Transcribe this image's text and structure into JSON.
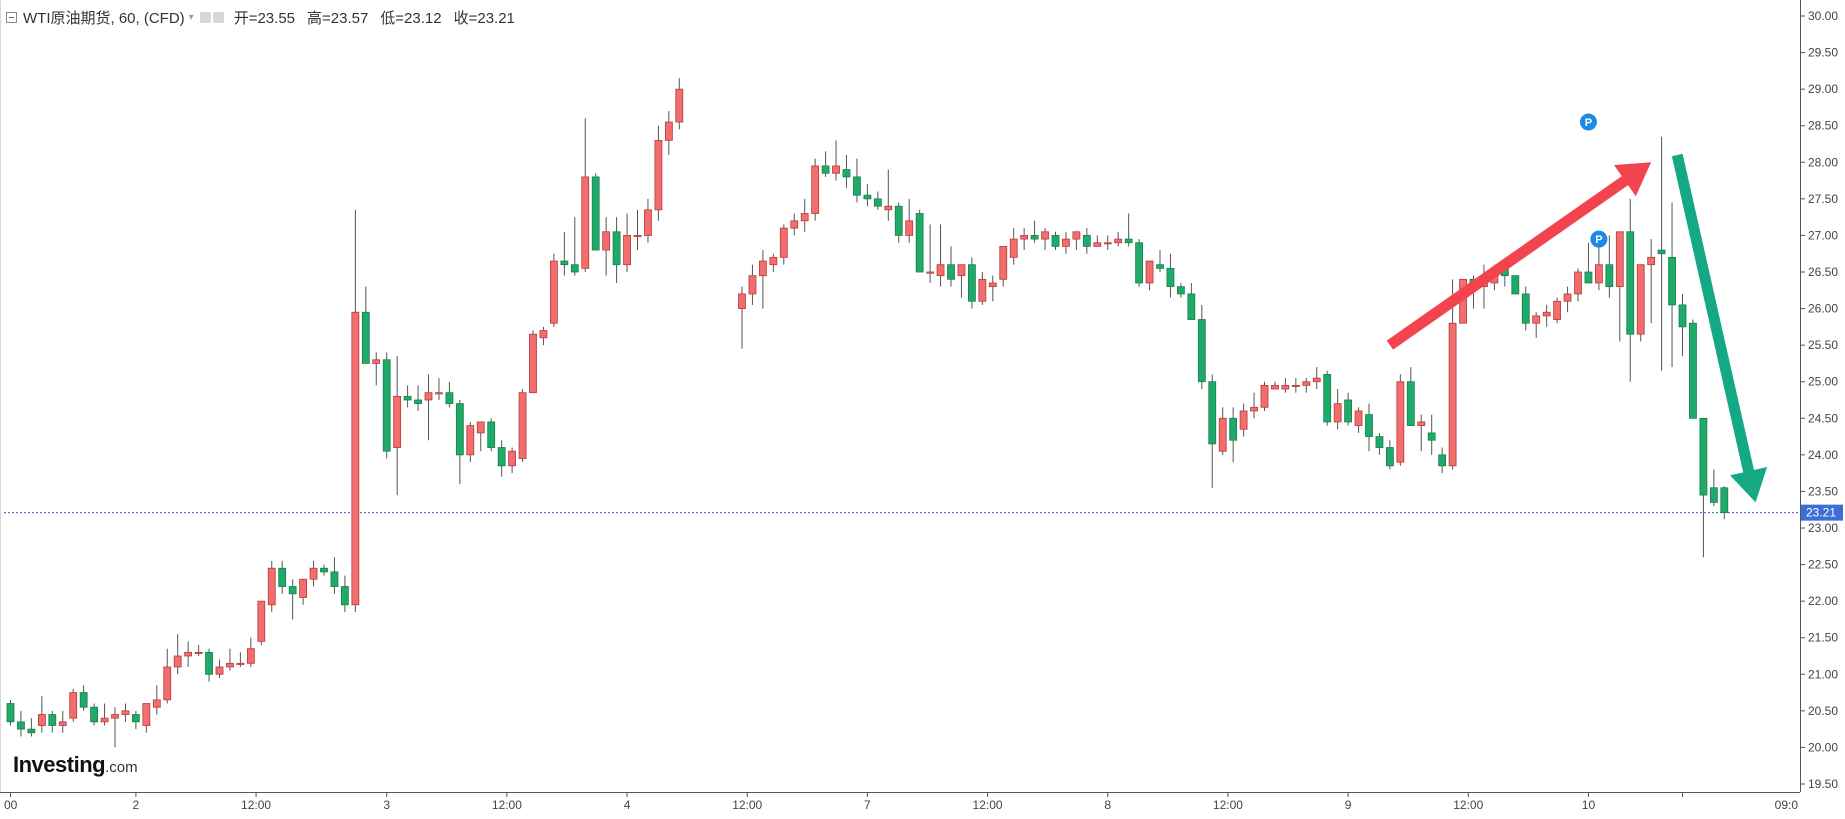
{
  "legend": {
    "symbol": "WTI原油期货, 60, (CFD)",
    "open_label": "开=23.55",
    "high_label": "高=23.57",
    "low_label": "低=23.12",
    "close_label": "收=23.21"
  },
  "brand": {
    "name": "Investing",
    "suffix": ".com"
  },
  "colors": {
    "up": "#ef5350",
    "down": "#26a69a",
    "up_fill": "#f26d6d",
    "down_fill": "#1faa6a",
    "wick": "#555555",
    "last_price_line": "#3a5fb8",
    "last_price_tag": "#3a6fd8",
    "arrow_up": "#f2444f",
    "arrow_down": "#14a884",
    "marker": "#1e88e5"
  },
  "chart_data": {
    "type": "candlestick",
    "title": "WTI原油期货, 60, (CFD)",
    "interval": "60",
    "ylim": [
      19.45,
      30.1
    ],
    "y_ticks": [
      "30.00",
      "29.50",
      "29.00",
      "28.50",
      "28.00",
      "27.50",
      "27.00",
      "26.50",
      "26.00",
      "25.50",
      "25.00",
      "24.50",
      "24.00",
      "23.50",
      "23.00",
      "22.50",
      "22.00",
      "21.50",
      "21.00",
      "20.50",
      "20.00",
      "19.50"
    ],
    "x_ticks": [
      "00",
      "2",
      "12:00",
      "3",
      "12:00",
      "4",
      "12:00",
      "7",
      "12:00",
      "8",
      "12:00",
      "9",
      "12:00",
      "10",
      "09:0"
    ],
    "last_price": "23.21",
    "x_tick_index": [
      0,
      12,
      23.5,
      36,
      47.5,
      59,
      70.5,
      82,
      93.5,
      105,
      116.5,
      128,
      139.5,
      151,
      160
    ],
    "candles": [
      [
        20.6,
        20.65,
        20.3,
        20.35
      ],
      [
        20.35,
        20.5,
        20.15,
        20.25
      ],
      [
        20.25,
        20.4,
        20.15,
        20.2
      ],
      [
        20.3,
        20.7,
        20.2,
        20.45
      ],
      [
        20.45,
        20.5,
        20.2,
        20.3
      ],
      [
        20.3,
        20.5,
        20.2,
        20.35
      ],
      [
        20.4,
        20.8,
        20.35,
        20.75
      ],
      [
        20.75,
        20.85,
        20.5,
        20.55
      ],
      [
        20.55,
        20.6,
        20.3,
        20.35
      ],
      [
        20.35,
        20.6,
        20.3,
        20.4
      ],
      [
        20.4,
        20.55,
        20.0,
        20.45
      ],
      [
        20.45,
        20.6,
        20.35,
        20.5
      ],
      [
        20.45,
        20.5,
        20.25,
        20.35
      ],
      [
        20.3,
        20.6,
        20.2,
        20.6
      ],
      [
        20.55,
        20.85,
        20.45,
        20.65
      ],
      [
        20.65,
        21.35,
        20.6,
        21.1
      ],
      [
        21.1,
        21.55,
        21.0,
        21.25
      ],
      [
        21.25,
        21.45,
        21.1,
        21.3
      ],
      [
        21.3,
        21.4,
        21.25,
        21.3
      ],
      [
        21.3,
        21.35,
        20.9,
        21.0
      ],
      [
        21.0,
        21.2,
        20.95,
        21.1
      ],
      [
        21.1,
        21.35,
        21.05,
        21.15
      ],
      [
        21.15,
        21.3,
        21.1,
        21.15
      ],
      [
        21.15,
        21.5,
        21.1,
        21.35
      ],
      [
        21.45,
        22.0,
        21.4,
        22.0
      ],
      [
        21.95,
        22.55,
        21.85,
        22.45
      ],
      [
        22.45,
        22.55,
        22.1,
        22.2
      ],
      [
        22.2,
        22.3,
        21.75,
        22.1
      ],
      [
        22.05,
        22.25,
        21.95,
        22.3
      ],
      [
        22.3,
        22.55,
        22.2,
        22.45
      ],
      [
        22.45,
        22.5,
        22.35,
        22.4
      ],
      [
        22.4,
        22.6,
        22.1,
        22.2
      ],
      [
        22.2,
        22.35,
        21.85,
        21.95
      ],
      [
        21.95,
        27.35,
        21.85,
        25.95
      ],
      [
        25.95,
        26.3,
        25.6,
        25.25
      ],
      [
        25.25,
        25.4,
        24.95,
        25.3
      ],
      [
        25.3,
        25.4,
        23.95,
        24.05
      ],
      [
        24.1,
        25.35,
        23.45,
        24.8
      ],
      [
        24.8,
        24.95,
        24.65,
        24.75
      ],
      [
        24.75,
        24.95,
        24.6,
        24.7
      ],
      [
        24.75,
        25.1,
        24.2,
        24.85
      ],
      [
        24.85,
        25.05,
        24.75,
        24.85
      ],
      [
        24.85,
        25.0,
        24.65,
        24.7
      ],
      [
        24.7,
        24.75,
        23.6,
        24.0
      ],
      [
        24.0,
        24.45,
        23.9,
        24.4
      ],
      [
        24.3,
        24.4,
        24.05,
        24.45
      ],
      [
        24.45,
        24.5,
        24.05,
        24.1
      ],
      [
        24.1,
        24.2,
        23.7,
        23.85
      ],
      [
        23.85,
        24.1,
        23.75,
        24.05
      ],
      [
        23.95,
        24.9,
        23.9,
        24.85
      ],
      [
        24.85,
        25.7,
        24.85,
        25.65
      ],
      [
        25.6,
        25.75,
        25.5,
        25.7
      ],
      [
        25.8,
        26.75,
        25.75,
        26.65
      ],
      [
        26.65,
        27.05,
        26.45,
        26.6
      ],
      [
        26.6,
        27.25,
        26.45,
        26.5
      ],
      [
        26.55,
        28.6,
        26.5,
        27.8
      ],
      [
        27.8,
        27.85,
        26.9,
        26.8
      ],
      [
        26.8,
        27.25,
        26.45,
        27.05
      ],
      [
        27.05,
        27.25,
        26.35,
        26.6
      ],
      [
        26.6,
        27.3,
        26.5,
        27.0
      ],
      [
        27.0,
        27.35,
        26.8,
        27.0
      ],
      [
        27.0,
        27.5,
        26.9,
        27.35
      ],
      [
        27.35,
        28.5,
        27.2,
        28.3
      ],
      [
        28.3,
        28.7,
        28.1,
        28.55
      ],
      [
        28.55,
        29.15,
        28.45,
        29.0
      ],
      [
        null,
        null,
        null,
        null
      ],
      [
        null,
        null,
        null,
        null
      ],
      [
        null,
        null,
        null,
        null
      ],
      [
        null,
        null,
        null,
        null
      ],
      [
        null,
        null,
        null,
        null
      ],
      [
        26.0,
        26.3,
        25.45,
        26.2
      ],
      [
        26.2,
        26.6,
        26.05,
        26.45
      ],
      [
        26.45,
        26.8,
        26.0,
        26.65
      ],
      [
        26.6,
        26.75,
        26.5,
        26.7
      ],
      [
        26.7,
        27.15,
        26.6,
        27.1
      ],
      [
        27.1,
        27.3,
        27.0,
        27.2
      ],
      [
        27.2,
        27.5,
        27.05,
        27.3
      ],
      [
        27.3,
        28.05,
        27.2,
        27.95
      ],
      [
        27.95,
        28.15,
        27.8,
        27.85
      ],
      [
        27.85,
        28.3,
        27.75,
        27.95
      ],
      [
        27.9,
        28.1,
        27.65,
        27.8
      ],
      [
        27.8,
        28.05,
        27.45,
        27.55
      ],
      [
        27.55,
        27.7,
        27.4,
        27.5
      ],
      [
        27.5,
        27.6,
        27.35,
        27.4
      ],
      [
        27.35,
        27.9,
        27.2,
        27.4
      ],
      [
        27.4,
        27.45,
        26.9,
        27.0
      ],
      [
        27.0,
        27.5,
        26.9,
        27.2
      ],
      [
        27.3,
        27.35,
        26.5,
        26.5
      ],
      [
        26.5,
        27.15,
        26.35,
        26.5
      ],
      [
        26.45,
        27.15,
        26.3,
        26.6
      ],
      [
        26.6,
        26.85,
        26.3,
        26.4
      ],
      [
        26.45,
        26.55,
        26.15,
        26.6
      ],
      [
        26.6,
        26.7,
        26.0,
        26.1
      ],
      [
        26.1,
        26.5,
        26.05,
        26.4
      ],
      [
        26.3,
        26.45,
        26.1,
        26.35
      ],
      [
        26.4,
        26.8,
        26.3,
        26.85
      ],
      [
        26.7,
        27.1,
        26.6,
        26.95
      ],
      [
        26.95,
        27.1,
        26.8,
        27.0
      ],
      [
        27.0,
        27.2,
        26.9,
        26.95
      ],
      [
        26.95,
        27.1,
        26.8,
        27.05
      ],
      [
        27.0,
        27.05,
        26.8,
        26.85
      ],
      [
        26.85,
        27.05,
        26.75,
        26.95
      ],
      [
        26.95,
        27.05,
        26.8,
        27.05
      ],
      [
        27.0,
        27.1,
        26.75,
        26.85
      ],
      [
        26.85,
        27.0,
        26.85,
        26.9
      ],
      [
        26.9,
        27.0,
        26.8,
        26.9
      ],
      [
        26.9,
        27.05,
        26.85,
        26.95
      ],
      [
        26.95,
        27.3,
        26.85,
        26.9
      ],
      [
        26.9,
        26.95,
        26.3,
        26.35
      ],
      [
        26.35,
        26.6,
        26.25,
        26.65
      ],
      [
        26.6,
        26.8,
        26.5,
        26.55
      ],
      [
        26.55,
        26.75,
        26.15,
        26.3
      ],
      [
        26.3,
        26.35,
        26.15,
        26.2
      ],
      [
        26.2,
        26.35,
        25.85,
        25.85
      ],
      [
        25.85,
        26.05,
        24.9,
        25.0
      ],
      [
        25.0,
        25.1,
        23.55,
        24.15
      ],
      [
        24.05,
        24.65,
        24.0,
        24.5
      ],
      [
        24.5,
        24.65,
        23.9,
        24.2
      ],
      [
        24.35,
        24.7,
        24.25,
        24.6
      ],
      [
        24.6,
        24.85,
        24.5,
        24.65
      ],
      [
        24.65,
        25.0,
        24.6,
        24.95
      ],
      [
        24.9,
        25.0,
        24.9,
        24.95
      ],
      [
        24.9,
        25.05,
        24.85,
        24.95
      ],
      [
        24.95,
        25.05,
        24.85,
        24.95
      ],
      [
        24.95,
        25.05,
        24.85,
        25.0
      ],
      [
        25.0,
        25.2,
        24.9,
        25.05
      ],
      [
        25.1,
        25.15,
        24.4,
        24.45
      ],
      [
        24.45,
        24.9,
        24.35,
        24.7
      ],
      [
        24.75,
        24.85,
        24.4,
        24.45
      ],
      [
        24.4,
        24.65,
        24.3,
        24.6
      ],
      [
        24.55,
        24.7,
        24.05,
        24.25
      ],
      [
        24.25,
        24.3,
        24.0,
        24.1
      ],
      [
        24.1,
        24.2,
        23.8,
        23.85
      ],
      [
        23.9,
        25.1,
        23.85,
        25.0
      ],
      [
        25.0,
        25.2,
        24.45,
        24.4
      ],
      [
        24.4,
        24.55,
        24.05,
        24.45
      ],
      [
        24.3,
        24.55,
        24.0,
        24.2
      ],
      [
        24.0,
        24.1,
        23.75,
        23.85
      ],
      [
        23.85,
        26.4,
        23.8,
        25.8
      ],
      [
        25.8,
        26.4,
        25.8,
        26.4
      ],
      [
        26.4,
        26.45,
        26.0,
        26.3
      ],
      [
        26.3,
        26.6,
        26.0,
        26.35
      ],
      [
        26.35,
        26.6,
        26.25,
        26.55
      ],
      [
        26.55,
        26.6,
        26.3,
        26.45
      ],
      [
        26.45,
        26.45,
        26.2,
        26.2
      ],
      [
        26.2,
        26.3,
        25.7,
        25.8
      ],
      [
        25.8,
        25.95,
        25.6,
        25.9
      ],
      [
        25.9,
        26.05,
        25.75,
        25.95
      ],
      [
        25.85,
        26.15,
        25.8,
        26.1
      ],
      [
        26.1,
        26.3,
        25.95,
        26.2
      ],
      [
        26.2,
        26.55,
        26.1,
        26.5
      ],
      [
        26.5,
        26.9,
        26.45,
        26.35
      ],
      [
        26.35,
        26.95,
        26.25,
        26.6
      ],
      [
        26.6,
        27.0,
        26.15,
        26.3
      ],
      [
        26.3,
        26.95,
        25.55,
        27.05
      ],
      [
        27.05,
        27.5,
        25.0,
        25.65
      ],
      [
        25.65,
        26.6,
        25.55,
        26.6
      ],
      [
        26.6,
        26.95,
        25.8,
        26.7
      ],
      [
        26.8,
        28.35,
        25.15,
        26.75
      ],
      [
        26.7,
        27.45,
        25.2,
        26.05
      ],
      [
        26.05,
        26.2,
        25.35,
        25.75
      ],
      [
        25.8,
        25.85,
        24.55,
        24.5
      ],
      [
        24.5,
        24.5,
        22.6,
        23.45
      ],
      [
        23.55,
        23.8,
        23.3,
        23.35
      ],
      [
        23.55,
        23.57,
        23.12,
        23.21
      ]
    ],
    "markers": [
      {
        "label": "P",
        "index": 151,
        "price": 28.55
      },
      {
        "label": "P",
        "index": 152,
        "price": 26.95
      }
    ],
    "annotations": [
      {
        "type": "arrow",
        "direction": "up",
        "from": [
          132,
          25.5
        ],
        "to": [
          157,
          28.0
        ]
      },
      {
        "type": "arrow",
        "direction": "down",
        "from": [
          159.5,
          28.1
        ],
        "to": [
          167,
          23.35
        ]
      }
    ]
  }
}
